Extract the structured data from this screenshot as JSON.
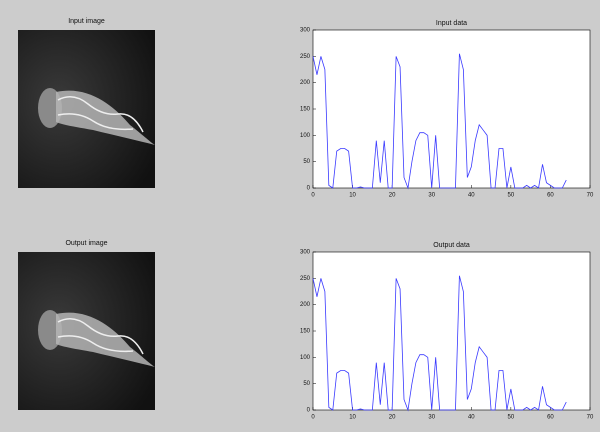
{
  "chart_data": [
    {
      "type": "image",
      "title": "Input image"
    },
    {
      "type": "line",
      "title": "Input data",
      "color": "#3a3aff",
      "x": [
        0,
        1,
        2,
        3,
        4,
        5,
        6,
        7,
        8,
        9,
        10,
        11,
        12,
        13,
        14,
        15,
        16,
        17,
        18,
        19,
        20,
        21,
        22,
        23,
        24,
        25,
        26,
        27,
        28,
        29,
        30,
        31,
        32,
        33,
        34,
        35,
        36,
        37,
        38,
        39,
        40,
        41,
        42,
        43,
        44,
        45,
        46,
        47,
        48,
        49,
        50,
        51,
        52,
        53,
        54,
        55,
        56,
        57,
        58,
        59,
        60,
        61,
        62,
        63,
        64
      ],
      "values": [
        250,
        215,
        250,
        225,
        5,
        0,
        70,
        75,
        75,
        70,
        0,
        0,
        2,
        0,
        0,
        0,
        90,
        10,
        90,
        0,
        0,
        250,
        230,
        20,
        0,
        50,
        90,
        105,
        105,
        100,
        0,
        100,
        0,
        0,
        0,
        0,
        0,
        255,
        225,
        20,
        40,
        90,
        120,
        110,
        100,
        0,
        0,
        75,
        75,
        0,
        40,
        0,
        0,
        0,
        5,
        0,
        5,
        0,
        45,
        10,
        5,
        0,
        0,
        0,
        15
      ],
      "xlim": [
        0,
        70
      ],
      "xticks": [
        0,
        10,
        20,
        30,
        40,
        50,
        60,
        70
      ],
      "ylim": [
        0,
        300
      ],
      "yticks": [
        0,
        50,
        100,
        150,
        200,
        250,
        300
      ]
    },
    {
      "type": "image",
      "title": "Output image"
    },
    {
      "type": "line",
      "title": "Output data",
      "color": "#3a3aff",
      "x": [
        0,
        1,
        2,
        3,
        4,
        5,
        6,
        7,
        8,
        9,
        10,
        11,
        12,
        13,
        14,
        15,
        16,
        17,
        18,
        19,
        20,
        21,
        22,
        23,
        24,
        25,
        26,
        27,
        28,
        29,
        30,
        31,
        32,
        33,
        34,
        35,
        36,
        37,
        38,
        39,
        40,
        41,
        42,
        43,
        44,
        45,
        46,
        47,
        48,
        49,
        50,
        51,
        52,
        53,
        54,
        55,
        56,
        57,
        58,
        59,
        60,
        61,
        62,
        63,
        64
      ],
      "values": [
        250,
        215,
        250,
        225,
        5,
        0,
        70,
        75,
        75,
        70,
        0,
        0,
        2,
        0,
        0,
        0,
        90,
        10,
        90,
        0,
        0,
        250,
        230,
        20,
        0,
        50,
        90,
        105,
        105,
        100,
        0,
        100,
        0,
        0,
        0,
        0,
        0,
        255,
        225,
        20,
        40,
        90,
        120,
        110,
        100,
        0,
        0,
        75,
        75,
        0,
        40,
        0,
        0,
        0,
        5,
        0,
        5,
        0,
        45,
        10,
        5,
        0,
        0,
        0,
        15
      ],
      "xlim": [
        0,
        70
      ],
      "xticks": [
        0,
        10,
        20,
        30,
        40,
        50,
        60,
        70
      ],
      "ylim": [
        0,
        300
      ],
      "yticks": [
        0,
        50,
        100,
        150,
        200,
        250,
        300
      ]
    }
  ]
}
